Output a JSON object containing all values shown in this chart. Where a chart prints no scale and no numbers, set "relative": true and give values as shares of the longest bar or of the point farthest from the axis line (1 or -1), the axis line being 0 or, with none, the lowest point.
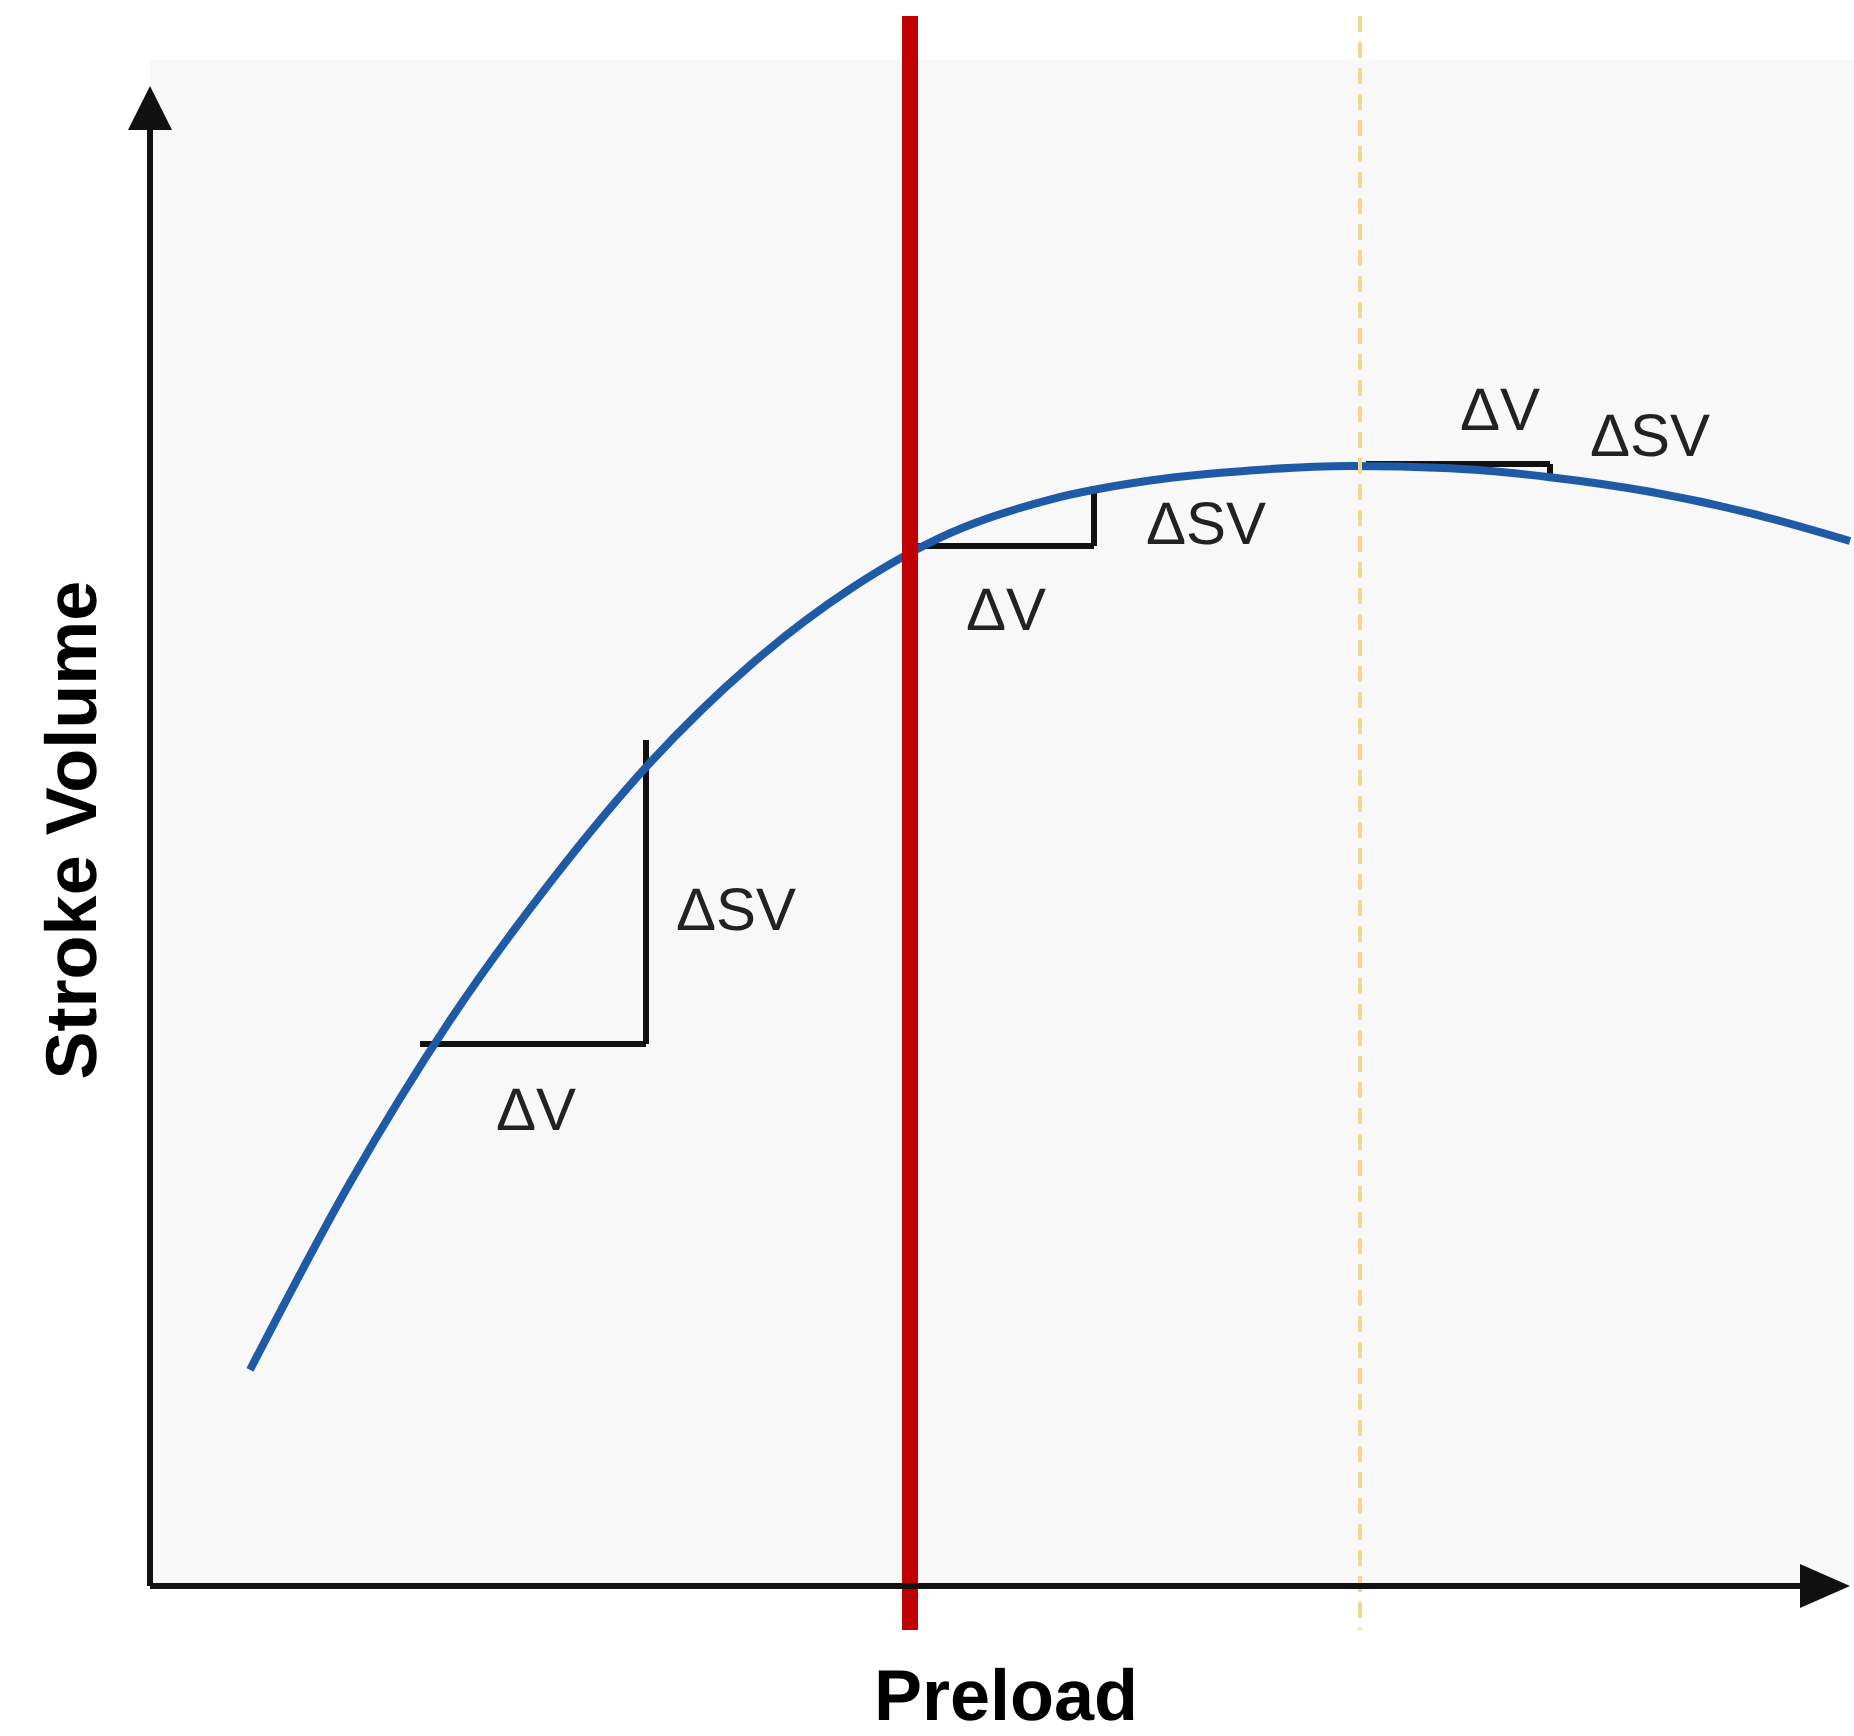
{
  "chart_data": {
    "type": "line",
    "relative": true,
    "xlabel": "Preload",
    "ylabel": "Stroke Volume",
    "categories": [
      null,
      null,
      null,
      null,
      null,
      null,
      null,
      null,
      null,
      null,
      null,
      null,
      null,
      null,
      null,
      null,
      null
    ],
    "series": [
      {
        "color": "#1f5aa6",
        "values": [
          0.193,
          0.36,
          0.505,
          0.628,
          0.735,
          0.822,
          0.89,
          0.94,
          0.97,
          0.987,
          0.996,
          1.0,
          0.998,
          0.99,
          0.977,
          0.958,
          0.933
        ]
      }
    ],
    "annotations": [
      "ΔV",
      "ΔSV",
      "ΔV",
      "ΔSV",
      "ΔV",
      "ΔSV"
    ]
  }
}
